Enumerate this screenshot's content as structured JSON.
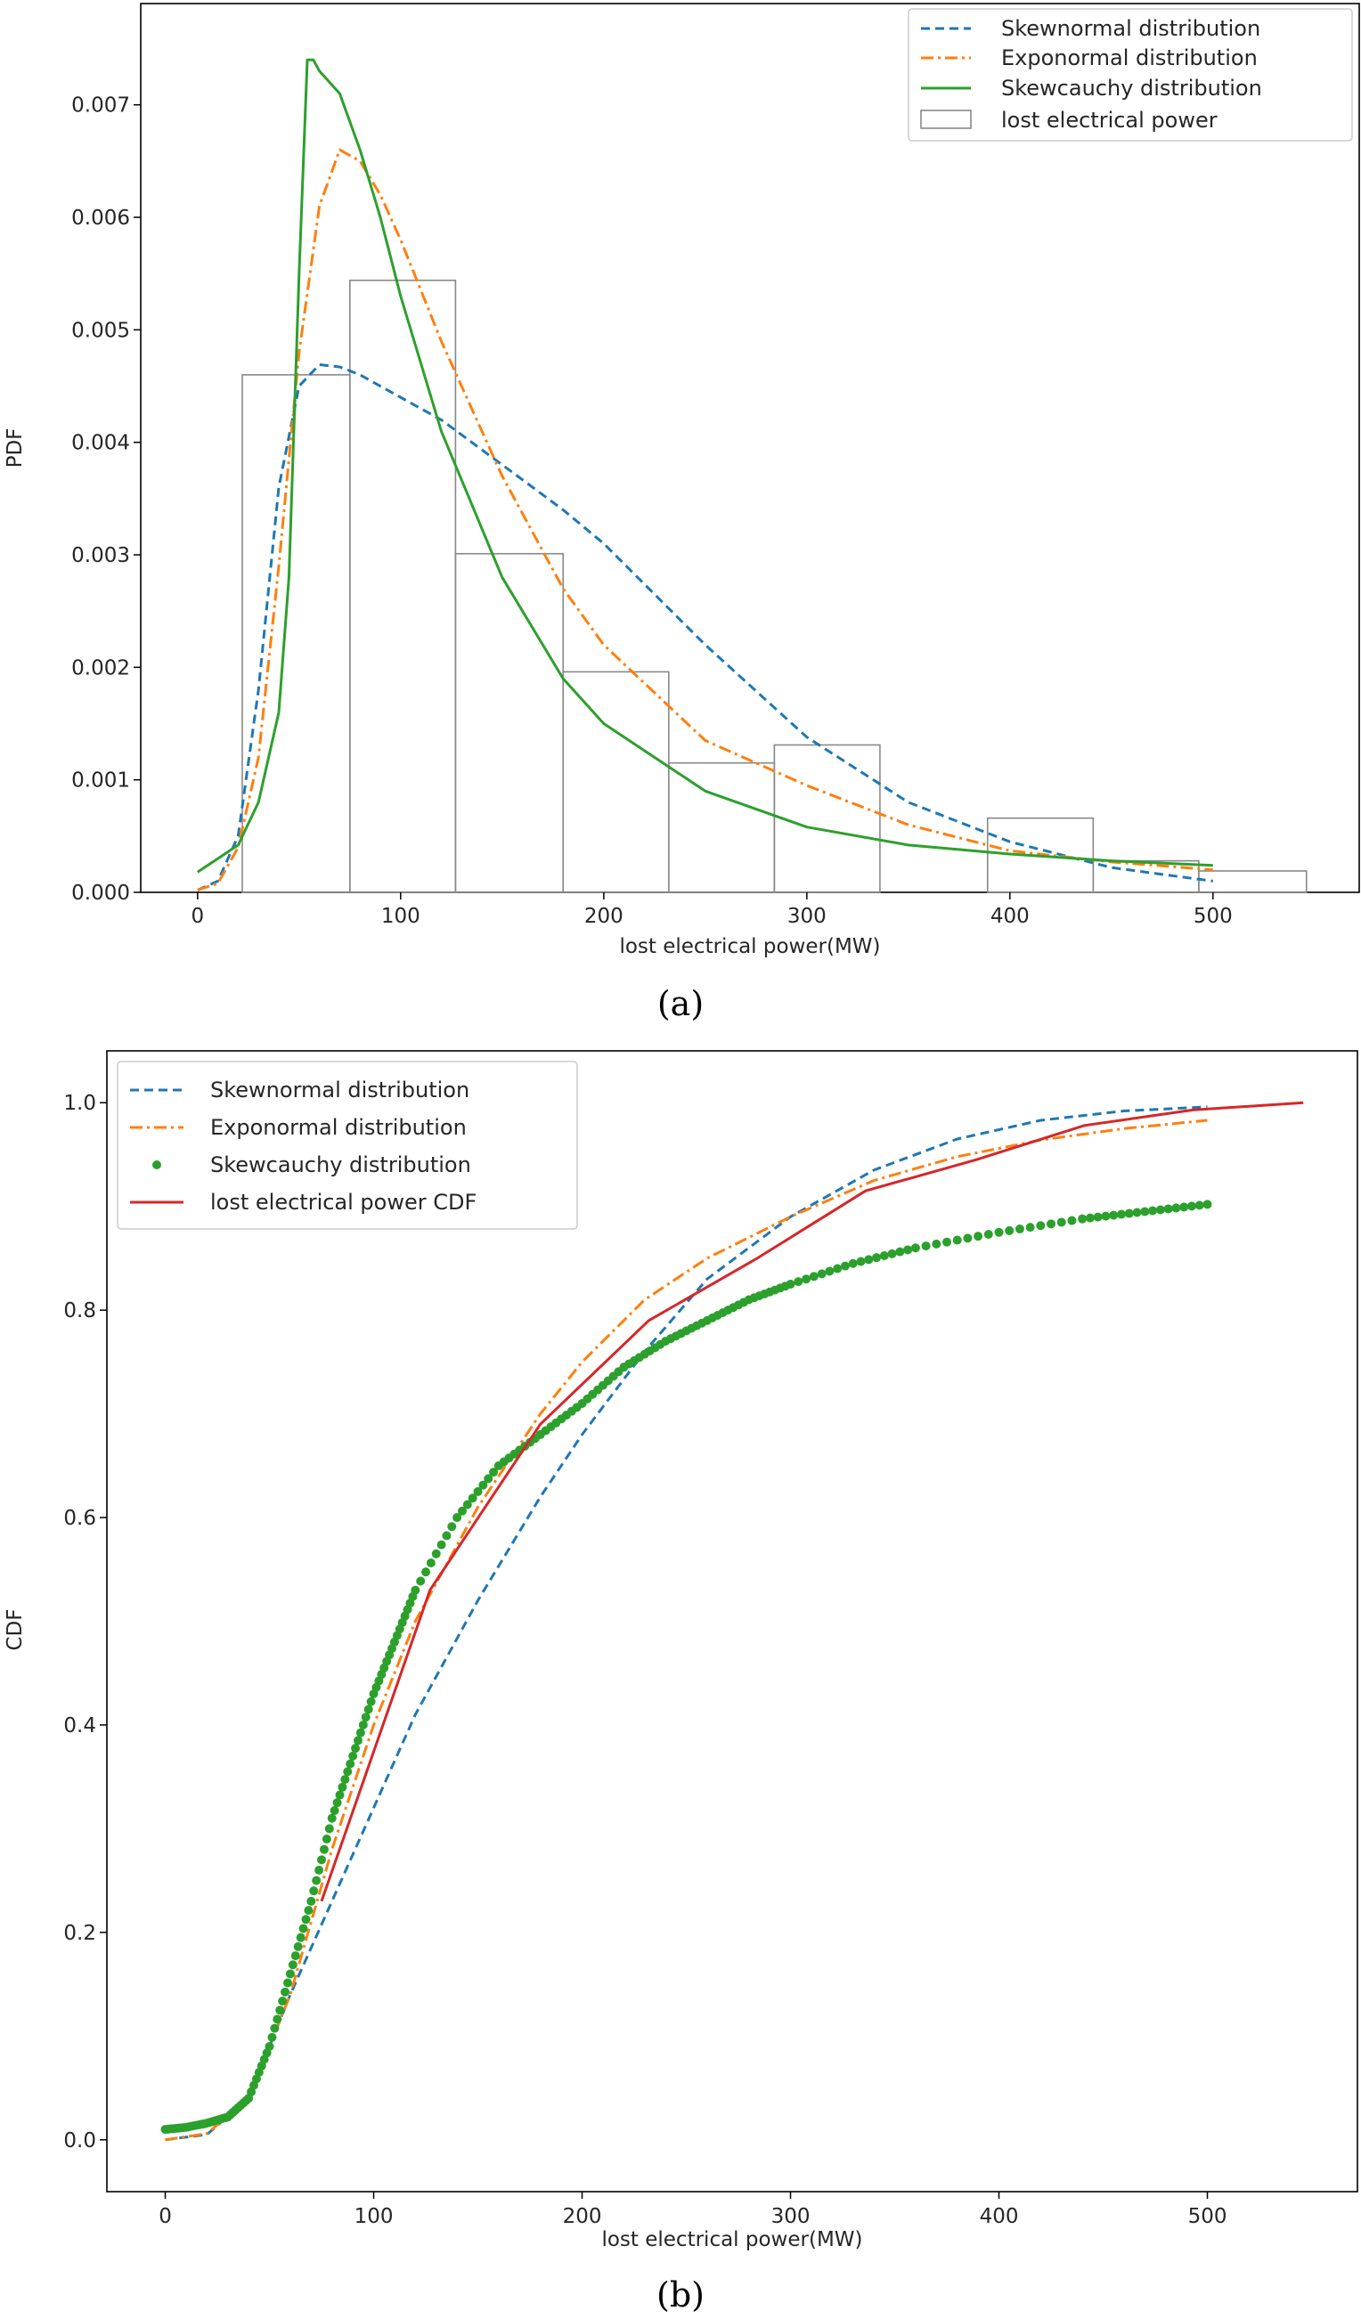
{
  "chart_data": [
    {
      "type": "line",
      "panel_caption": "(a)",
      "xlabel": "lost electrical power(MW)",
      "ylabel": "PDF",
      "xlim": [
        -28,
        572
      ],
      "ylim": [
        0,
        0.0079
      ],
      "xticks": [
        0,
        100,
        200,
        300,
        400,
        500
      ],
      "xtick_labels": [
        "0",
        "100",
        "200",
        "300",
        "400",
        "500"
      ],
      "yticks": [
        0,
        0.001,
        0.002,
        0.003,
        0.004,
        0.005,
        0.006,
        0.007
      ],
      "ytick_labels": [
        "0.000",
        "0.001",
        "0.002",
        "0.003",
        "0.004",
        "0.005",
        "0.006",
        "0.007"
      ],
      "grid": false,
      "legend_position": "top-right",
      "series": [
        {
          "name": "Skewnormal distribution",
          "style": "dashed",
          "color": "#1f77b4",
          "x": [
            0,
            10,
            20,
            30,
            40,
            50,
            60,
            70,
            80,
            100,
            120,
            150,
            180,
            200,
            250,
            300,
            350,
            400,
            450,
            500
          ],
          "y": [
            2e-05,
            0.0001,
            0.0005,
            0.0018,
            0.0036,
            0.0045,
            0.00469,
            0.00467,
            0.0046,
            0.0044,
            0.0042,
            0.0038,
            0.0034,
            0.0031,
            0.0022,
            0.00138,
            0.0008,
            0.00045,
            0.00022,
            0.0001
          ]
        },
        {
          "name": "Exponormal distribution",
          "style": "dashdot",
          "color": "#ff7f0e",
          "x": [
            0,
            10,
            20,
            30,
            40,
            50,
            60,
            70,
            80,
            90,
            100,
            120,
            150,
            180,
            200,
            250,
            300,
            350,
            400,
            450,
            500
          ],
          "y": [
            2e-05,
            8e-05,
            0.0004,
            0.0012,
            0.0029,
            0.0048,
            0.0061,
            0.0066,
            0.0065,
            0.0062,
            0.0058,
            0.0049,
            0.0037,
            0.0027,
            0.0022,
            0.00135,
            0.00095,
            0.0006,
            0.00037,
            0.00027,
            0.0002
          ]
        },
        {
          "name": "Skewcauchy distribution",
          "style": "solid",
          "color": "#2ca02c",
          "x": [
            0,
            20,
            30,
            40,
            45,
            50,
            54,
            57,
            60,
            70,
            80,
            90,
            100,
            120,
            150,
            180,
            200,
            250,
            300,
            350,
            400,
            450,
            500
          ],
          "y": [
            0.00018,
            0.00042,
            0.0008,
            0.0016,
            0.0028,
            0.0055,
            0.0074,
            0.0074,
            0.0073,
            0.0071,
            0.0066,
            0.006,
            0.0053,
            0.0041,
            0.0028,
            0.0019,
            0.0015,
            0.0009,
            0.00058,
            0.00042,
            0.00034,
            0.00028,
            0.00024
          ]
        }
      ],
      "histogram": {
        "name": "lost electrical power",
        "color": "#888888",
        "bin_edges": [
          22,
          75,
          127,
          180,
          232,
          284,
          336,
          389,
          441,
          493,
          546
        ],
        "values": [
          0.0046,
          0.00544,
          0.00301,
          0.00196,
          0.00115,
          0.00131,
          0.0,
          0.00066,
          0.00028,
          0.00019
        ]
      }
    },
    {
      "type": "line",
      "panel_caption": "(b)",
      "xlabel": "lost electrical power(MW)",
      "ylabel": "CDF",
      "xlim": [
        -28,
        572
      ],
      "ylim": [
        -0.05,
        1.05
      ],
      "xticks": [
        0,
        100,
        200,
        300,
        400,
        500
      ],
      "xtick_labels": [
        "0",
        "100",
        "200",
        "300",
        "400",
        "500"
      ],
      "yticks": [
        0,
        0.2,
        0.4,
        0.6,
        0.8,
        1.0
      ],
      "ytick_labels": [
        "0.0",
        "0.2",
        "0.4",
        "0.6",
        "0.8",
        "1.0"
      ],
      "grid": false,
      "legend_position": "top-left",
      "series": [
        {
          "name": "Skewnormal distribution",
          "style": "dashed",
          "color": "#1f77b4",
          "x": [
            0,
            20,
            40,
            60,
            80,
            100,
            120,
            150,
            180,
            200,
            230,
            260,
            300,
            340,
            380,
            420,
            460,
            500
          ],
          "y": [
            0,
            0.005,
            0.04,
            0.14,
            0.23,
            0.32,
            0.41,
            0.52,
            0.62,
            0.68,
            0.76,
            0.83,
            0.89,
            0.935,
            0.965,
            0.983,
            0.992,
            0.996
          ]
        },
        {
          "name": "Exponormal distribution",
          "style": "dashdot",
          "color": "#ff7f0e",
          "x": [
            0,
            20,
            40,
            60,
            80,
            100,
            120,
            150,
            180,
            200,
            230,
            260,
            300,
            340,
            380,
            420,
            460,
            500
          ],
          "y": [
            0,
            0.006,
            0.04,
            0.14,
            0.28,
            0.4,
            0.5,
            0.61,
            0.7,
            0.75,
            0.81,
            0.85,
            0.89,
            0.925,
            0.948,
            0.964,
            0.975,
            0.983
          ]
        },
        {
          "name": "Skewcauchy distribution",
          "style": "dots",
          "color": "#2ca02c",
          "x": [
            0,
            10,
            20,
            30,
            40,
            50,
            60,
            70,
            80,
            90,
            100,
            110,
            120,
            140,
            160,
            180,
            200,
            220,
            240,
            260,
            280,
            300,
            330,
            360,
            400,
            440,
            470,
            500
          ],
          "y": [
            0.01,
            0.012,
            0.016,
            0.022,
            0.04,
            0.09,
            0.16,
            0.23,
            0.31,
            0.37,
            0.43,
            0.48,
            0.53,
            0.6,
            0.65,
            0.68,
            0.71,
            0.745,
            0.77,
            0.79,
            0.81,
            0.825,
            0.845,
            0.86,
            0.875,
            0.888,
            0.895,
            0.902
          ]
        },
        {
          "name": "lost electrical power CDF",
          "style": "solid",
          "color": "#d62728",
          "x": [
            75,
            127,
            180,
            232,
            284,
            336,
            389,
            441,
            493,
            546
          ],
          "y": [
            0.23,
            0.53,
            0.69,
            0.79,
            0.85,
            0.915,
            0.945,
            0.978,
            0.993,
            1.0
          ]
        }
      ]
    }
  ]
}
